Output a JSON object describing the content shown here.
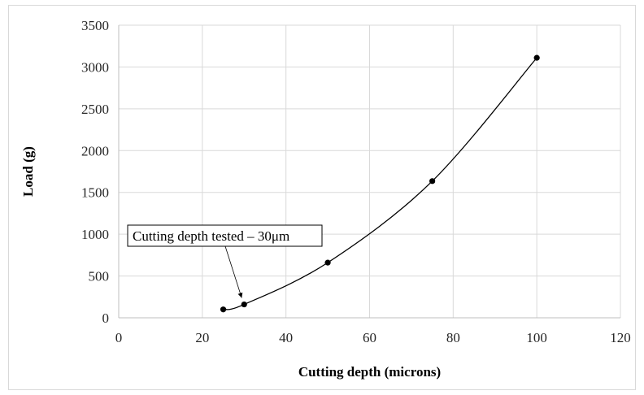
{
  "chart_data": {
    "type": "scatter",
    "title": "",
    "xlabel": "Cutting depth (microns)",
    "ylabel": "Load (g)",
    "xlim": [
      0,
      120
    ],
    "ylim": [
      0,
      3500
    ],
    "x_ticks": [
      0,
      20,
      40,
      60,
      80,
      100,
      120
    ],
    "y_ticks": [
      0,
      500,
      1000,
      1500,
      2000,
      2500,
      3000,
      3500
    ],
    "grid": true,
    "legend": "none",
    "series": [
      {
        "x": [
          25,
          30,
          50,
          75,
          100
        ],
        "y": [
          100,
          160,
          660,
          1635,
          3110
        ],
        "marker": "circle",
        "line": "smooth",
        "color": "#000000"
      }
    ],
    "annotations": [
      {
        "text": "Cutting depth tested – 30μm",
        "x": 30,
        "y": 160
      }
    ]
  }
}
